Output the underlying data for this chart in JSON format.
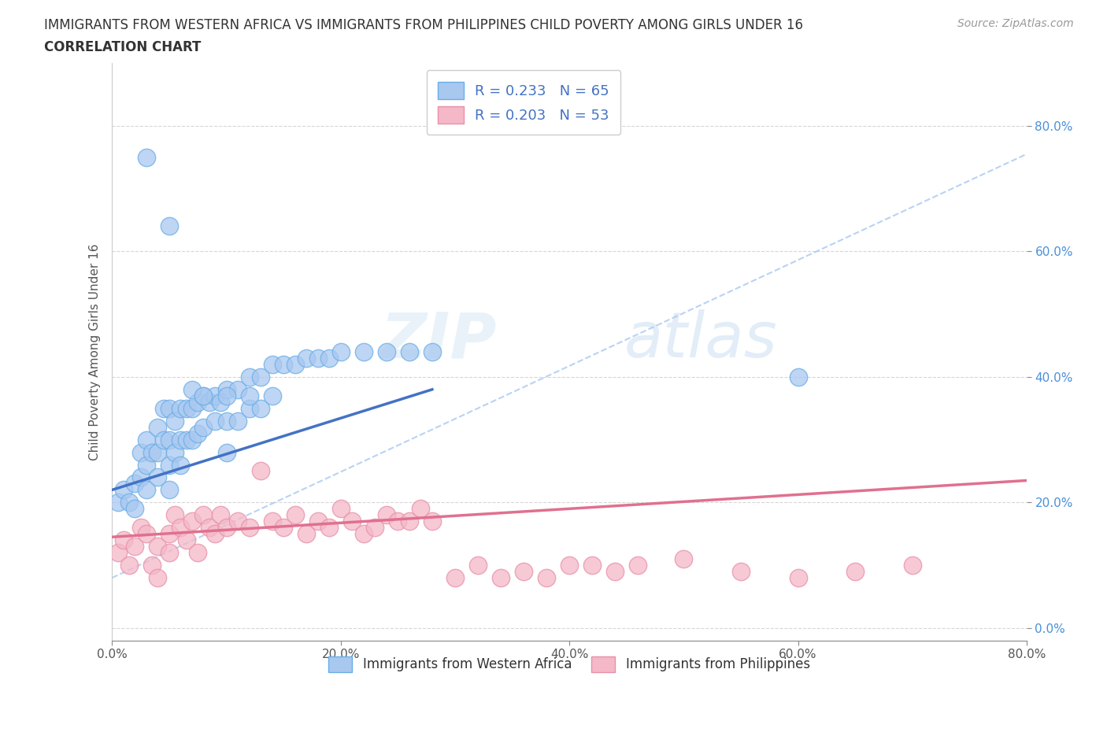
{
  "title_line1": "IMMIGRANTS FROM WESTERN AFRICA VS IMMIGRANTS FROM PHILIPPINES CHILD POVERTY AMONG GIRLS UNDER 16",
  "title_line2": "CORRELATION CHART",
  "source": "Source: ZipAtlas.com",
  "ylabel": "Child Poverty Among Girls Under 16",
  "xlim": [
    0.0,
    0.8
  ],
  "ylim": [
    -0.02,
    0.9
  ],
  "xticks": [
    0.0,
    0.2,
    0.4,
    0.6,
    0.8
  ],
  "yticks": [
    0.0,
    0.2,
    0.4,
    0.6,
    0.8
  ],
  "xtick_labels": [
    "0.0%",
    "20.0%",
    "40.0%",
    "60.0%",
    "80.0%"
  ],
  "ytick_labels": [
    "0.0%",
    "20.0%",
    "40.0%",
    "60.0%",
    "80.0%"
  ],
  "series1_label": "Immigrants from Western Africa",
  "series1_color": "#a8c8f0",
  "series1_edge_color": "#6aaee8",
  "series1_line_color": "#4472c4",
  "series1_R": "0.233",
  "series1_N": "65",
  "series2_label": "Immigrants from Philippines",
  "series2_color": "#f4b8c8",
  "series2_edge_color": "#e890a8",
  "series2_line_color": "#e07090",
  "series2_R": "0.203",
  "series2_N": "53",
  "legend_R_color": "#4472c4",
  "watermark_zip": "ZIP",
  "watermark_atlas": "atlas",
  "dash_line_color": "#a8c8f0",
  "series1_x": [
    0.005,
    0.01,
    0.015,
    0.02,
    0.02,
    0.025,
    0.025,
    0.03,
    0.03,
    0.03,
    0.035,
    0.04,
    0.04,
    0.04,
    0.045,
    0.045,
    0.05,
    0.05,
    0.05,
    0.05,
    0.055,
    0.055,
    0.06,
    0.06,
    0.06,
    0.065,
    0.065,
    0.07,
    0.07,
    0.075,
    0.075,
    0.08,
    0.08,
    0.085,
    0.09,
    0.09,
    0.095,
    0.1,
    0.1,
    0.1,
    0.11,
    0.11,
    0.12,
    0.12,
    0.13,
    0.13,
    0.14,
    0.15,
    0.16,
    0.17,
    0.18,
    0.19,
    0.2,
    0.22,
    0.24,
    0.26,
    0.28,
    0.6,
    0.03,
    0.05,
    0.07,
    0.08,
    0.1,
    0.12,
    0.14
  ],
  "series1_y": [
    0.2,
    0.22,
    0.2,
    0.23,
    0.19,
    0.28,
    0.24,
    0.3,
    0.26,
    0.22,
    0.28,
    0.32,
    0.28,
    0.24,
    0.35,
    0.3,
    0.35,
    0.3,
    0.26,
    0.22,
    0.33,
    0.28,
    0.35,
    0.3,
    0.26,
    0.35,
    0.3,
    0.35,
    0.3,
    0.36,
    0.31,
    0.37,
    0.32,
    0.36,
    0.37,
    0.33,
    0.36,
    0.38,
    0.33,
    0.28,
    0.38,
    0.33,
    0.4,
    0.35,
    0.4,
    0.35,
    0.42,
    0.42,
    0.42,
    0.43,
    0.43,
    0.43,
    0.44,
    0.44,
    0.44,
    0.44,
    0.44,
    0.4,
    0.75,
    0.64,
    0.38,
    0.37,
    0.37,
    0.37,
    0.37
  ],
  "series2_x": [
    0.005,
    0.01,
    0.015,
    0.02,
    0.025,
    0.03,
    0.035,
    0.04,
    0.04,
    0.05,
    0.05,
    0.055,
    0.06,
    0.065,
    0.07,
    0.075,
    0.08,
    0.085,
    0.09,
    0.095,
    0.1,
    0.11,
    0.12,
    0.13,
    0.14,
    0.15,
    0.16,
    0.17,
    0.18,
    0.19,
    0.2,
    0.21,
    0.22,
    0.23,
    0.24,
    0.25,
    0.26,
    0.27,
    0.28,
    0.3,
    0.32,
    0.34,
    0.36,
    0.38,
    0.4,
    0.42,
    0.44,
    0.46,
    0.5,
    0.55,
    0.6,
    0.65,
    0.7
  ],
  "series2_y": [
    0.12,
    0.14,
    0.1,
    0.13,
    0.16,
    0.15,
    0.1,
    0.08,
    0.13,
    0.15,
    0.12,
    0.18,
    0.16,
    0.14,
    0.17,
    0.12,
    0.18,
    0.16,
    0.15,
    0.18,
    0.16,
    0.17,
    0.16,
    0.25,
    0.17,
    0.16,
    0.18,
    0.15,
    0.17,
    0.16,
    0.19,
    0.17,
    0.15,
    0.16,
    0.18,
    0.17,
    0.17,
    0.19,
    0.17,
    0.08,
    0.1,
    0.08,
    0.09,
    0.08,
    0.1,
    0.1,
    0.09,
    0.1,
    0.11,
    0.09,
    0.08,
    0.09,
    0.1
  ],
  "series1_line_x": [
    0.0,
    0.28
  ],
  "series1_line_y": [
    0.22,
    0.38
  ],
  "series2_line_x": [
    0.0,
    0.8
  ],
  "series2_line_y": [
    0.145,
    0.235
  ],
  "dash_line_x": [
    0.0,
    0.8
  ],
  "dash_line_y": [
    0.08,
    0.755
  ]
}
